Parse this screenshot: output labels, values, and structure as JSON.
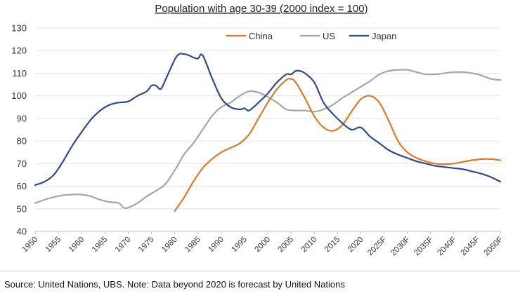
{
  "chart_data": {
    "type": "line",
    "title": "Population with age 30-39 (2000 index = 100)",
    "xlabel": "",
    "ylabel": "",
    "ylim": [
      40,
      130
    ],
    "yticks": [
      40,
      50,
      60,
      70,
      80,
      90,
      100,
      110,
      120,
      130
    ],
    "categories": [
      "1950",
      "1955",
      "1960",
      "1965",
      "1970",
      "1975",
      "1980",
      "1985",
      "1990",
      "1995",
      "2000",
      "2005",
      "2010",
      "2015",
      "2020",
      "2025F",
      "2030F",
      "2035F",
      "2040F",
      "2045F",
      "2050F"
    ],
    "grid": "horizontal",
    "legend_position": "top-right",
    "series": [
      {
        "name": "China",
        "color": "#E07A27",
        "x": [
          1980,
          1982,
          1984,
          1986,
          1988,
          1990,
          1992,
          1994,
          1996,
          1998,
          2000,
          2002,
          2004,
          2005,
          2006,
          2008,
          2010,
          2012,
          2014,
          2016,
          2018,
          2020,
          2022,
          2024,
          2026,
          2028,
          2030,
          2032,
          2034,
          2036,
          2038,
          2040,
          2042,
          2044,
          2046,
          2048,
          2050
        ],
        "values": [
          49,
          55,
          62,
          68,
          72,
          75,
          77,
          79,
          83,
          90,
          97,
          103,
          107,
          107.5,
          106,
          99,
          91,
          86,
          84.5,
          87,
          93,
          98.5,
          100,
          97,
          89,
          80,
          75,
          72.5,
          71,
          70,
          69.8,
          70,
          70.8,
          71.5,
          72,
          72,
          71.5
        ]
      },
      {
        "name": "US",
        "color": "#A6A6A6",
        "x": [
          1950,
          1952,
          1954,
          1956,
          1958,
          1960,
          1962,
          1964,
          1966,
          1968,
          1969,
          1970,
          1972,
          1974,
          1976,
          1978,
          1980,
          1982,
          1984,
          1986,
          1988,
          1990,
          1992,
          1994,
          1996,
          1998,
          2000,
          2002,
          2004,
          2006,
          2008,
          2010,
          2012,
          2014,
          2016,
          2018,
          2020,
          2022,
          2024,
          2026,
          2028,
          2030,
          2032,
          2034,
          2036,
          2038,
          2040,
          2042,
          2044,
          2046,
          2048,
          2050
        ],
        "values": [
          52.5,
          54,
          55.2,
          56,
          56.3,
          56.3,
          55.5,
          54,
          53,
          52.5,
          50.5,
          50.5,
          52.5,
          55.5,
          58,
          61,
          67,
          74,
          79,
          85,
          91,
          95,
          97,
          100,
          102,
          101.5,
          99.5,
          97,
          94,
          93.5,
          93.5,
          93,
          94,
          96,
          99,
          101.5,
          104,
          106.5,
          109.5,
          111,
          111.5,
          111.5,
          110.5,
          109.5,
          109.5,
          110,
          110.5,
          110.5,
          110,
          109,
          107.5,
          107
        ]
      },
      {
        "name": "Japan",
        "color": "#2E4A8F",
        "x": [
          1950,
          1952,
          1954,
          1956,
          1958,
          1960,
          1962,
          1964,
          1966,
          1968,
          1970,
          1972,
          1974,
          1975,
          1976,
          1977,
          1978,
          1980,
          1981,
          1982,
          1983,
          1984,
          1985,
          1986,
          1988,
          1990,
          1992,
          1994,
          1995,
          1996,
          1998,
          2000,
          2002,
          2004,
          2005,
          2006,
          2007,
          2008,
          2010,
          2012,
          2014,
          2016,
          2018,
          2020,
          2022,
          2024,
          2026,
          2028,
          2030,
          2032,
          2034,
          2036,
          2038,
          2040,
          2042,
          2044,
          2046,
          2048,
          2050
        ],
        "values": [
          60.5,
          62,
          65,
          71,
          78,
          84,
          89.5,
          93.5,
          96,
          97,
          97.5,
          100,
          102,
          104.5,
          104.5,
          103,
          107,
          116,
          118.5,
          118.5,
          118,
          117,
          116.5,
          118,
          108,
          99,
          95,
          94,
          94.5,
          93.5,
          97,
          101,
          106,
          109.5,
          109.5,
          111,
          111,
          110,
          106,
          97,
          92,
          88,
          85,
          86,
          82,
          79,
          76,
          74,
          72.5,
          71,
          70,
          69,
          68.5,
          68,
          67.5,
          66.5,
          65.5,
          64,
          62
        ]
      }
    ]
  },
  "source_note": "Source: United Nations, UBS. Note: Data beyond 2020 is forecast by United Nations"
}
